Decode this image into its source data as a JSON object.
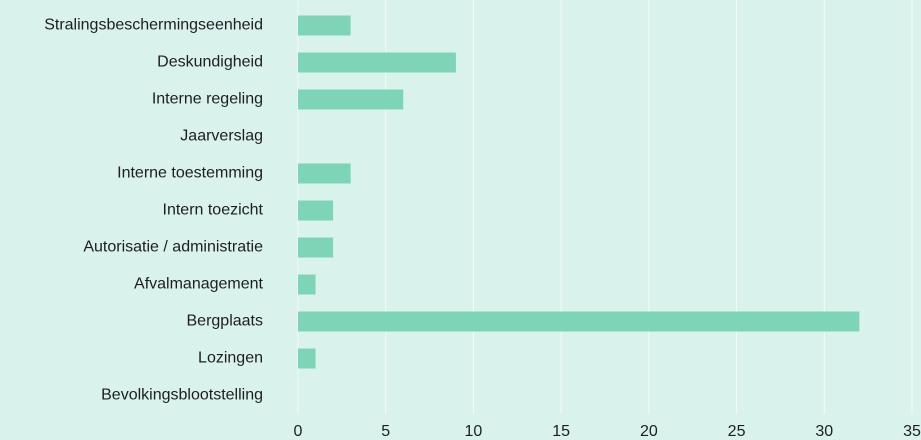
{
  "chart_data": {
    "type": "bar",
    "orientation": "horizontal",
    "categories": [
      "Stralingsbeschermingseenheid",
      "Deskundigheid",
      "Interne regeling",
      "Jaarverslag",
      "Interne toestemming",
      "Intern toezicht",
      "Autorisatie / administratie",
      "Afvalmanagement",
      "Bergplaats",
      "Lozingen",
      "Bevolkingsblootstelling"
    ],
    "values": [
      3,
      9,
      6,
      0,
      3,
      2,
      2,
      1,
      32,
      1,
      0
    ],
    "color": "#7ed4b6",
    "xlim": [
      0,
      35
    ],
    "xticks": [
      0,
      5,
      10,
      15,
      20,
      25,
      30,
      35
    ],
    "grid": true
  }
}
